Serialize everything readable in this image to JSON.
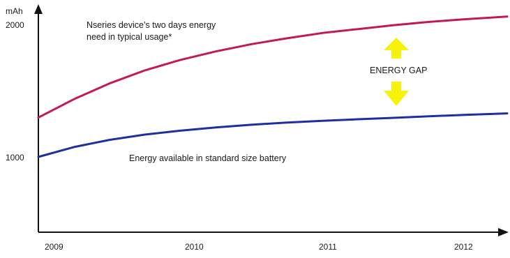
{
  "chart_data": {
    "type": "line",
    "y_unit_label": "mAh",
    "x_ticks": [
      "2009",
      "2010",
      "2011",
      "2012"
    ],
    "y_ticks": [
      {
        "value": 1000,
        "label": "1000"
      },
      {
        "value": 2000,
        "label": "2000"
      }
    ],
    "xlim": [
      2009,
      2012.3
    ],
    "ylim": [
      550,
      2000
    ],
    "grid": false,
    "legend": "none",
    "series": [
      {
        "color": "#c4185a",
        "x": [
          2009,
          2009.25,
          2009.5,
          2009.75,
          2010,
          2010.25,
          2010.5,
          2010.75,
          2011,
          2011.25,
          2011.5,
          2011.75,
          2012,
          2012.3
        ],
        "values": [
          1300,
          1440,
          1560,
          1660,
          1740,
          1805,
          1860,
          1905,
          1945,
          1975,
          2005,
          2030,
          2050,
          2070
        ]
      },
      {
        "color": "#1c2fa3",
        "x": [
          2009,
          2009.25,
          2009.5,
          2009.75,
          2010,
          2010.25,
          2010.5,
          2010.75,
          2011,
          2011.25,
          2011.5,
          2011.75,
          2012,
          2012.3
        ],
        "values": [
          1000,
          1075,
          1130,
          1170,
          1200,
          1225,
          1245,
          1262,
          1275,
          1287,
          1298,
          1310,
          1320,
          1332
        ]
      }
    ],
    "annotations": {
      "top_line": [
        "Nseries device’s two days energy",
        "need in typical usage*"
      ],
      "bottom_line": "Energy available in standard size battery",
      "gap": "ENERGY GAP"
    }
  },
  "colors": {
    "axis": "#111111",
    "arrow": "#f7f20a"
  }
}
